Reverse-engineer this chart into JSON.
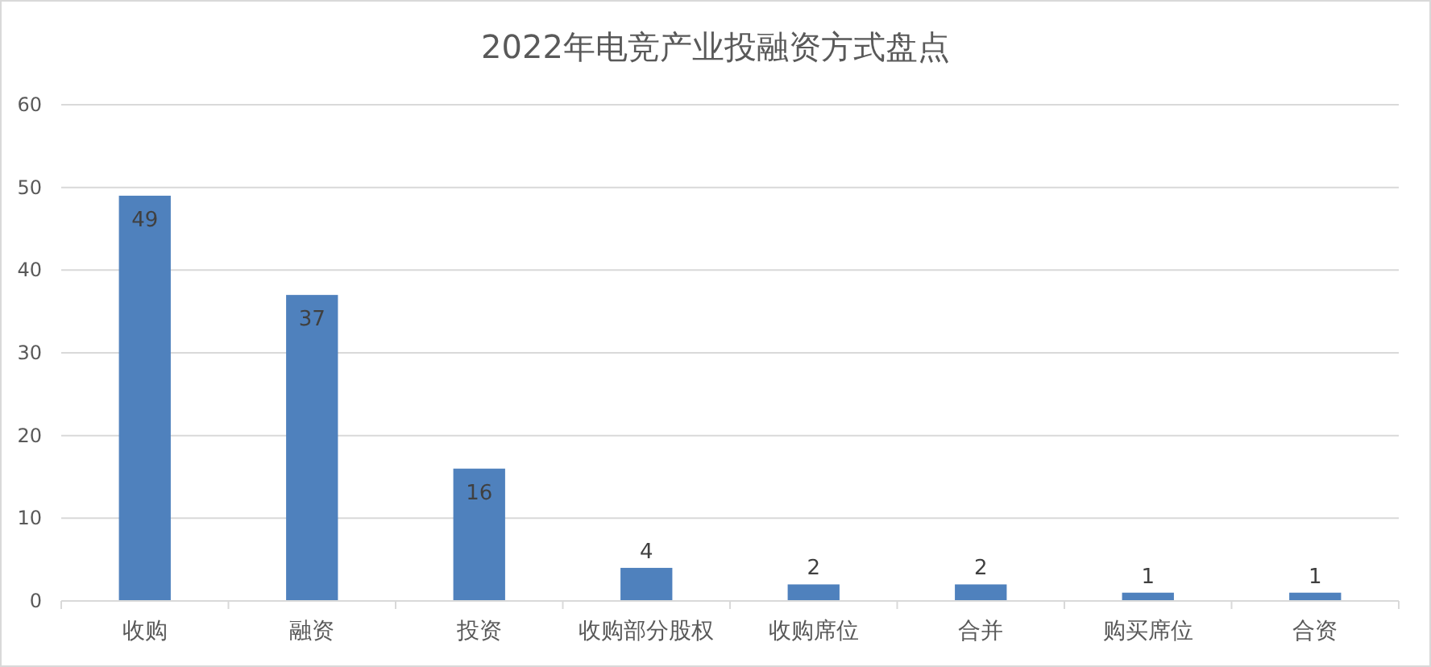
{
  "chart_data": {
    "type": "bar",
    "title": "2022年电竞产业投融资方式盘点",
    "categories": [
      "收购",
      "融资",
      "投资",
      "收购部分股权",
      "收购席位",
      "合并",
      "购买席位",
      "合资"
    ],
    "values": [
      49,
      37,
      16,
      4,
      2,
      2,
      1,
      1
    ],
    "color": "#4f81bd",
    "ylim": [
      0,
      60
    ],
    "yticks": [
      0,
      10,
      20,
      30,
      40,
      50,
      60
    ],
    "grid": "y",
    "data_labels": true
  }
}
